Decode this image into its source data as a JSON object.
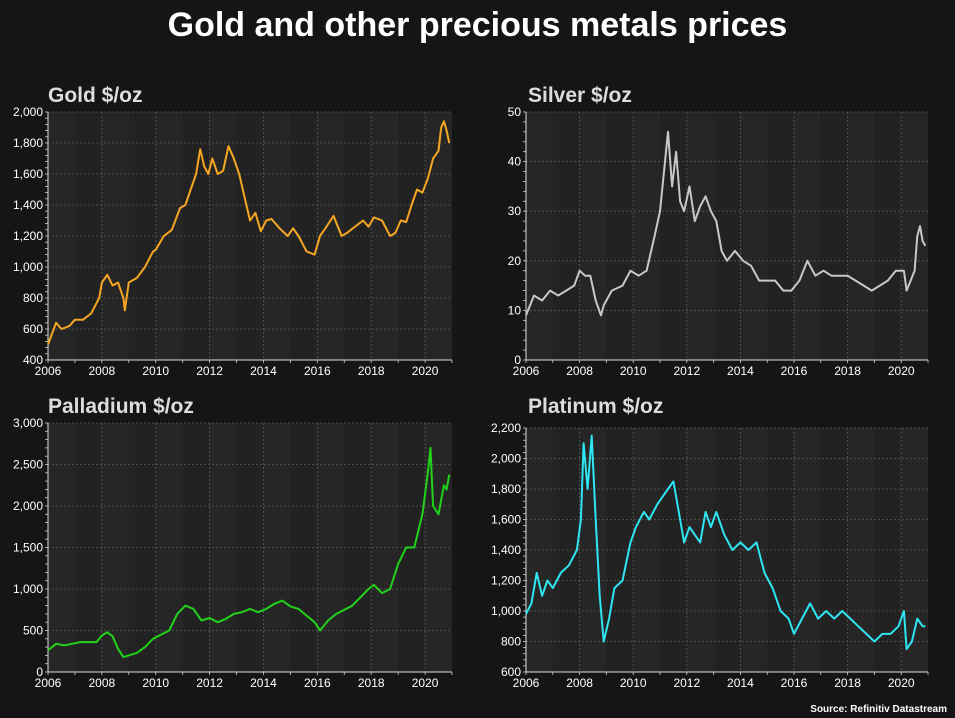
{
  "title": "Gold and other precious metals prices",
  "source": "Source: Refinitiv Datastream",
  "chart_data": [
    {
      "type": "line",
      "title": "Gold $/oz",
      "color": "#f5a623",
      "xlim": [
        2006,
        2021
      ],
      "ylim": [
        400,
        2000
      ],
      "yticks": [
        400,
        600,
        800,
        1000,
        1200,
        1400,
        1600,
        1800,
        2000
      ],
      "ytick_labels": [
        "400",
        "600",
        "800",
        "1,000",
        "1,200",
        "1,400",
        "1,600",
        "1,800",
        "2,000"
      ],
      "xticks": [
        2006,
        2008,
        2010,
        2012,
        2014,
        2016,
        2018,
        2020
      ],
      "grid": true,
      "x": [
        2006.0,
        2006.3,
        2006.5,
        2006.8,
        2007.0,
        2007.3,
        2007.6,
        2007.9,
        2008.0,
        2008.2,
        2008.4,
        2008.6,
        2008.8,
        2008.85,
        2009.0,
        2009.3,
        2009.6,
        2009.9,
        2010.0,
        2010.3,
        2010.6,
        2010.9,
        2011.1,
        2011.3,
        2011.5,
        2011.65,
        2011.8,
        2011.95,
        2012.1,
        2012.3,
        2012.5,
        2012.7,
        2012.9,
        2013.1,
        2013.3,
        2013.5,
        2013.7,
        2013.9,
        2014.1,
        2014.3,
        2014.6,
        2014.9,
        2015.1,
        2015.3,
        2015.6,
        2015.9,
        2016.1,
        2016.3,
        2016.6,
        2016.9,
        2017.1,
        2017.4,
        2017.7,
        2017.9,
        2018.1,
        2018.4,
        2018.7,
        2018.9,
        2019.1,
        2019.3,
        2019.5,
        2019.7,
        2019.9,
        2020.1,
        2020.3,
        2020.5,
        2020.6,
        2020.7,
        2020.8,
        2020.9
      ],
      "y": [
        500,
        640,
        600,
        620,
        660,
        660,
        700,
        800,
        900,
        950,
        880,
        900,
        800,
        720,
        900,
        930,
        1000,
        1100,
        1110,
        1200,
        1240,
        1380,
        1400,
        1500,
        1600,
        1760,
        1650,
        1600,
        1700,
        1600,
        1620,
        1780,
        1700,
        1600,
        1450,
        1300,
        1350,
        1230,
        1300,
        1310,
        1250,
        1200,
        1250,
        1200,
        1100,
        1080,
        1200,
        1250,
        1330,
        1200,
        1220,
        1260,
        1300,
        1260,
        1320,
        1300,
        1200,
        1220,
        1300,
        1290,
        1400,
        1500,
        1480,
        1570,
        1700,
        1750,
        1900,
        1940,
        1880,
        1800
      ]
    },
    {
      "type": "line",
      "title": "Silver $/oz",
      "color": "#c8c8c8",
      "xlim": [
        2006,
        2021
      ],
      "ylim": [
        0,
        50
      ],
      "yticks": [
        0,
        10,
        20,
        30,
        40,
        50
      ],
      "ytick_labels": [
        "0",
        "10",
        "20",
        "30",
        "40",
        "50"
      ],
      "xticks": [
        2006,
        2008,
        2010,
        2012,
        2014,
        2016,
        2018,
        2020
      ],
      "grid": true,
      "x": [
        2006.0,
        2006.3,
        2006.6,
        2006.9,
        2007.2,
        2007.5,
        2007.8,
        2008.0,
        2008.2,
        2008.4,
        2008.6,
        2008.8,
        2008.9,
        2009.2,
        2009.6,
        2009.9,
        2010.2,
        2010.5,
        2010.8,
        2011.0,
        2011.15,
        2011.3,
        2011.45,
        2011.6,
        2011.75,
        2011.9,
        2012.1,
        2012.3,
        2012.5,
        2012.7,
        2012.9,
        2013.1,
        2013.3,
        2013.5,
        2013.8,
        2014.1,
        2014.4,
        2014.7,
        2015.0,
        2015.3,
        2015.6,
        2015.9,
        2016.2,
        2016.5,
        2016.8,
        2017.1,
        2017.4,
        2017.7,
        2018.0,
        2018.3,
        2018.6,
        2018.9,
        2019.2,
        2019.5,
        2019.8,
        2020.1,
        2020.2,
        2020.5,
        2020.6,
        2020.7,
        2020.8,
        2020.9
      ],
      "y": [
        9,
        13,
        12,
        14,
        13,
        14,
        15,
        18,
        17,
        17,
        12,
        9,
        11,
        14,
        15,
        18,
        17,
        18,
        25,
        30,
        38,
        46,
        35,
        42,
        32,
        30,
        35,
        28,
        31,
        33,
        30,
        28,
        22,
        20,
        22,
        20,
        19,
        16,
        16,
        16,
        14,
        14,
        16,
        20,
        17,
        18,
        17,
        17,
        17,
        16,
        15,
        14,
        15,
        16,
        18,
        18,
        14,
        18,
        25,
        27,
        24,
        23
      ]
    },
    {
      "type": "line",
      "title": "Palladium $/oz",
      "color": "#22d11a",
      "xlim": [
        2006,
        2021
      ],
      "ylim": [
        0,
        3000
      ],
      "yticks": [
        0,
        500,
        1000,
        1500,
        2000,
        2500,
        3000
      ],
      "ytick_labels": [
        "0",
        "500",
        "1,000",
        "1,500",
        "2,000",
        "2,500",
        "3,000"
      ],
      "xticks": [
        2006,
        2008,
        2010,
        2012,
        2014,
        2016,
        2018,
        2020
      ],
      "grid": true,
      "x": [
        2006.0,
        2006.3,
        2006.6,
        2006.9,
        2007.2,
        2007.5,
        2007.8,
        2008.0,
        2008.2,
        2008.4,
        2008.6,
        2008.8,
        2009.0,
        2009.3,
        2009.6,
        2009.9,
        2010.2,
        2010.5,
        2010.8,
        2011.1,
        2011.4,
        2011.7,
        2012.0,
        2012.3,
        2012.6,
        2012.9,
        2013.2,
        2013.5,
        2013.8,
        2014.1,
        2014.4,
        2014.7,
        2015.0,
        2015.3,
        2015.6,
        2015.9,
        2016.1,
        2016.4,
        2016.7,
        2017.0,
        2017.3,
        2017.6,
        2017.9,
        2018.1,
        2018.4,
        2018.7,
        2019.0,
        2019.3,
        2019.6,
        2019.9,
        2020.1,
        2020.2,
        2020.3,
        2020.5,
        2020.7,
        2020.8,
        2020.9
      ],
      "y": [
        260,
        340,
        320,
        340,
        360,
        360,
        360,
        440,
        480,
        430,
        280,
        180,
        200,
        230,
        300,
        400,
        450,
        500,
        700,
        800,
        760,
        620,
        650,
        600,
        640,
        700,
        720,
        760,
        720,
        760,
        820,
        860,
        790,
        760,
        680,
        600,
        500,
        620,
        700,
        750,
        800,
        900,
        1000,
        1050,
        950,
        1000,
        1300,
        1500,
        1500,
        1900,
        2400,
        2700,
        2000,
        1900,
        2250,
        2200,
        2380
      ]
    },
    {
      "type": "line",
      "title": "Platinum $/oz",
      "color": "#2ee6f2",
      "xlim": [
        2006,
        2021
      ],
      "ylim": [
        600,
        2200
      ],
      "yticks": [
        600,
        800,
        1000,
        1200,
        1400,
        1600,
        1800,
        2000,
        2200
      ],
      "ytick_labels": [
        "600",
        "800",
        "1,000",
        "1,200",
        "1,400",
        "1,600",
        "1,800",
        "2,000",
        "2,200"
      ],
      "xticks": [
        2006,
        2008,
        2010,
        2012,
        2014,
        2016,
        2018,
        2020
      ],
      "grid": true,
      "x": [
        2006.0,
        2006.2,
        2006.4,
        2006.6,
        2006.8,
        2007.0,
        2007.3,
        2007.6,
        2007.9,
        2008.05,
        2008.15,
        2008.3,
        2008.45,
        2008.6,
        2008.75,
        2008.9,
        2009.1,
        2009.3,
        2009.6,
        2009.9,
        2010.1,
        2010.4,
        2010.6,
        2010.9,
        2011.1,
        2011.3,
        2011.5,
        2011.7,
        2011.9,
        2012.1,
        2012.3,
        2012.5,
        2012.7,
        2012.9,
        2013.1,
        2013.4,
        2013.7,
        2014.0,
        2014.3,
        2014.6,
        2014.9,
        2015.2,
        2015.5,
        2015.8,
        2016.0,
        2016.3,
        2016.6,
        2016.9,
        2017.2,
        2017.5,
        2017.8,
        2018.1,
        2018.4,
        2018.7,
        2019.0,
        2019.3,
        2019.6,
        2019.9,
        2020.1,
        2020.2,
        2020.4,
        2020.6,
        2020.8,
        2020.9
      ],
      "y": [
        980,
        1050,
        1250,
        1100,
        1200,
        1150,
        1250,
        1300,
        1400,
        1600,
        2100,
        1800,
        2150,
        1600,
        1100,
        800,
        950,
        1150,
        1200,
        1450,
        1550,
        1650,
        1600,
        1700,
        1750,
        1800,
        1850,
        1650,
        1450,
        1550,
        1500,
        1450,
        1650,
        1550,
        1650,
        1500,
        1400,
        1450,
        1400,
        1450,
        1250,
        1150,
        1000,
        950,
        850,
        950,
        1050,
        950,
        1000,
        950,
        1000,
        950,
        900,
        850,
        800,
        850,
        850,
        900,
        1000,
        750,
        800,
        950,
        900,
        900
      ]
    }
  ]
}
